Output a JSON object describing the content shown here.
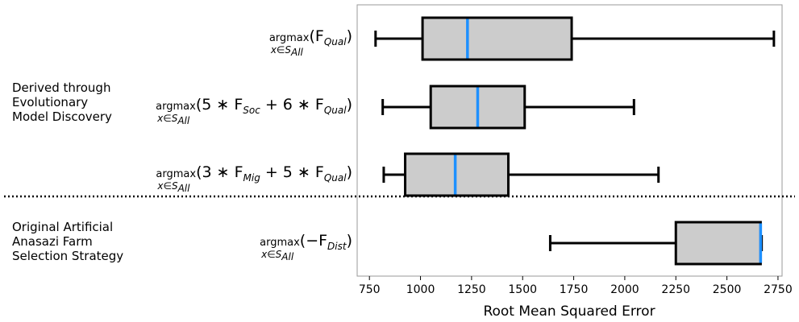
{
  "chart_data": {
    "type": "box",
    "orientation": "horizontal",
    "xlabel": "Root Mean Squared Error",
    "xlim": [
      690,
      2770
    ],
    "xticks": [
      750,
      1000,
      1250,
      1500,
      1750,
      2000,
      2250,
      2500,
      2750
    ],
    "colors": {
      "box_fill": "#cccccc",
      "median": "#1e90ff",
      "outline": "#000000"
    },
    "groups": [
      {
        "label_lines": [
          "Derived through",
          "Evolutionary",
          "Model Discovery"
        ]
      },
      {
        "label_lines": [
          "Original Artificial",
          "Anasazi Farm",
          "Selection Strategy"
        ]
      }
    ],
    "separator": "dotted",
    "series": [
      {
        "group": 0,
        "label": {
          "op": "argmax",
          "sub": "x∈S",
          "subsub": "All",
          "expr": "(F",
          "var": "Qual",
          "close": ")"
        },
        "min": 780,
        "q1": 1010,
        "median": 1230,
        "q3": 1740,
        "max": 2730
      },
      {
        "group": 0,
        "label": {
          "op": "argmax",
          "sub": "x∈S",
          "subsub": "All",
          "expr": "(5 ∗ F",
          "var": "Soc",
          "mid": " + 6 ∗ F",
          "var2": "Qual",
          "close": ")"
        },
        "min": 815,
        "q1": 1050,
        "median": 1280,
        "q3": 1510,
        "max": 2045
      },
      {
        "group": 0,
        "label": {
          "op": "argmax",
          "sub": "x∈S",
          "subsub": "All",
          "expr": "(3 ∗ F",
          "var": "Mig",
          "mid": " + 5 ∗ F",
          "var2": "Qual",
          "close": ")"
        },
        "min": 820,
        "q1": 925,
        "median": 1170,
        "q3": 1430,
        "max": 2165
      },
      {
        "group": 1,
        "label": {
          "op": "argmax",
          "sub": "x∈S",
          "subsub": "All",
          "expr": "(−F",
          "var": "Dist",
          "close": ")"
        },
        "min": 1635,
        "q1": 2250,
        "median": 2665,
        "q3": 2665,
        "max": 2670
      }
    ]
  }
}
